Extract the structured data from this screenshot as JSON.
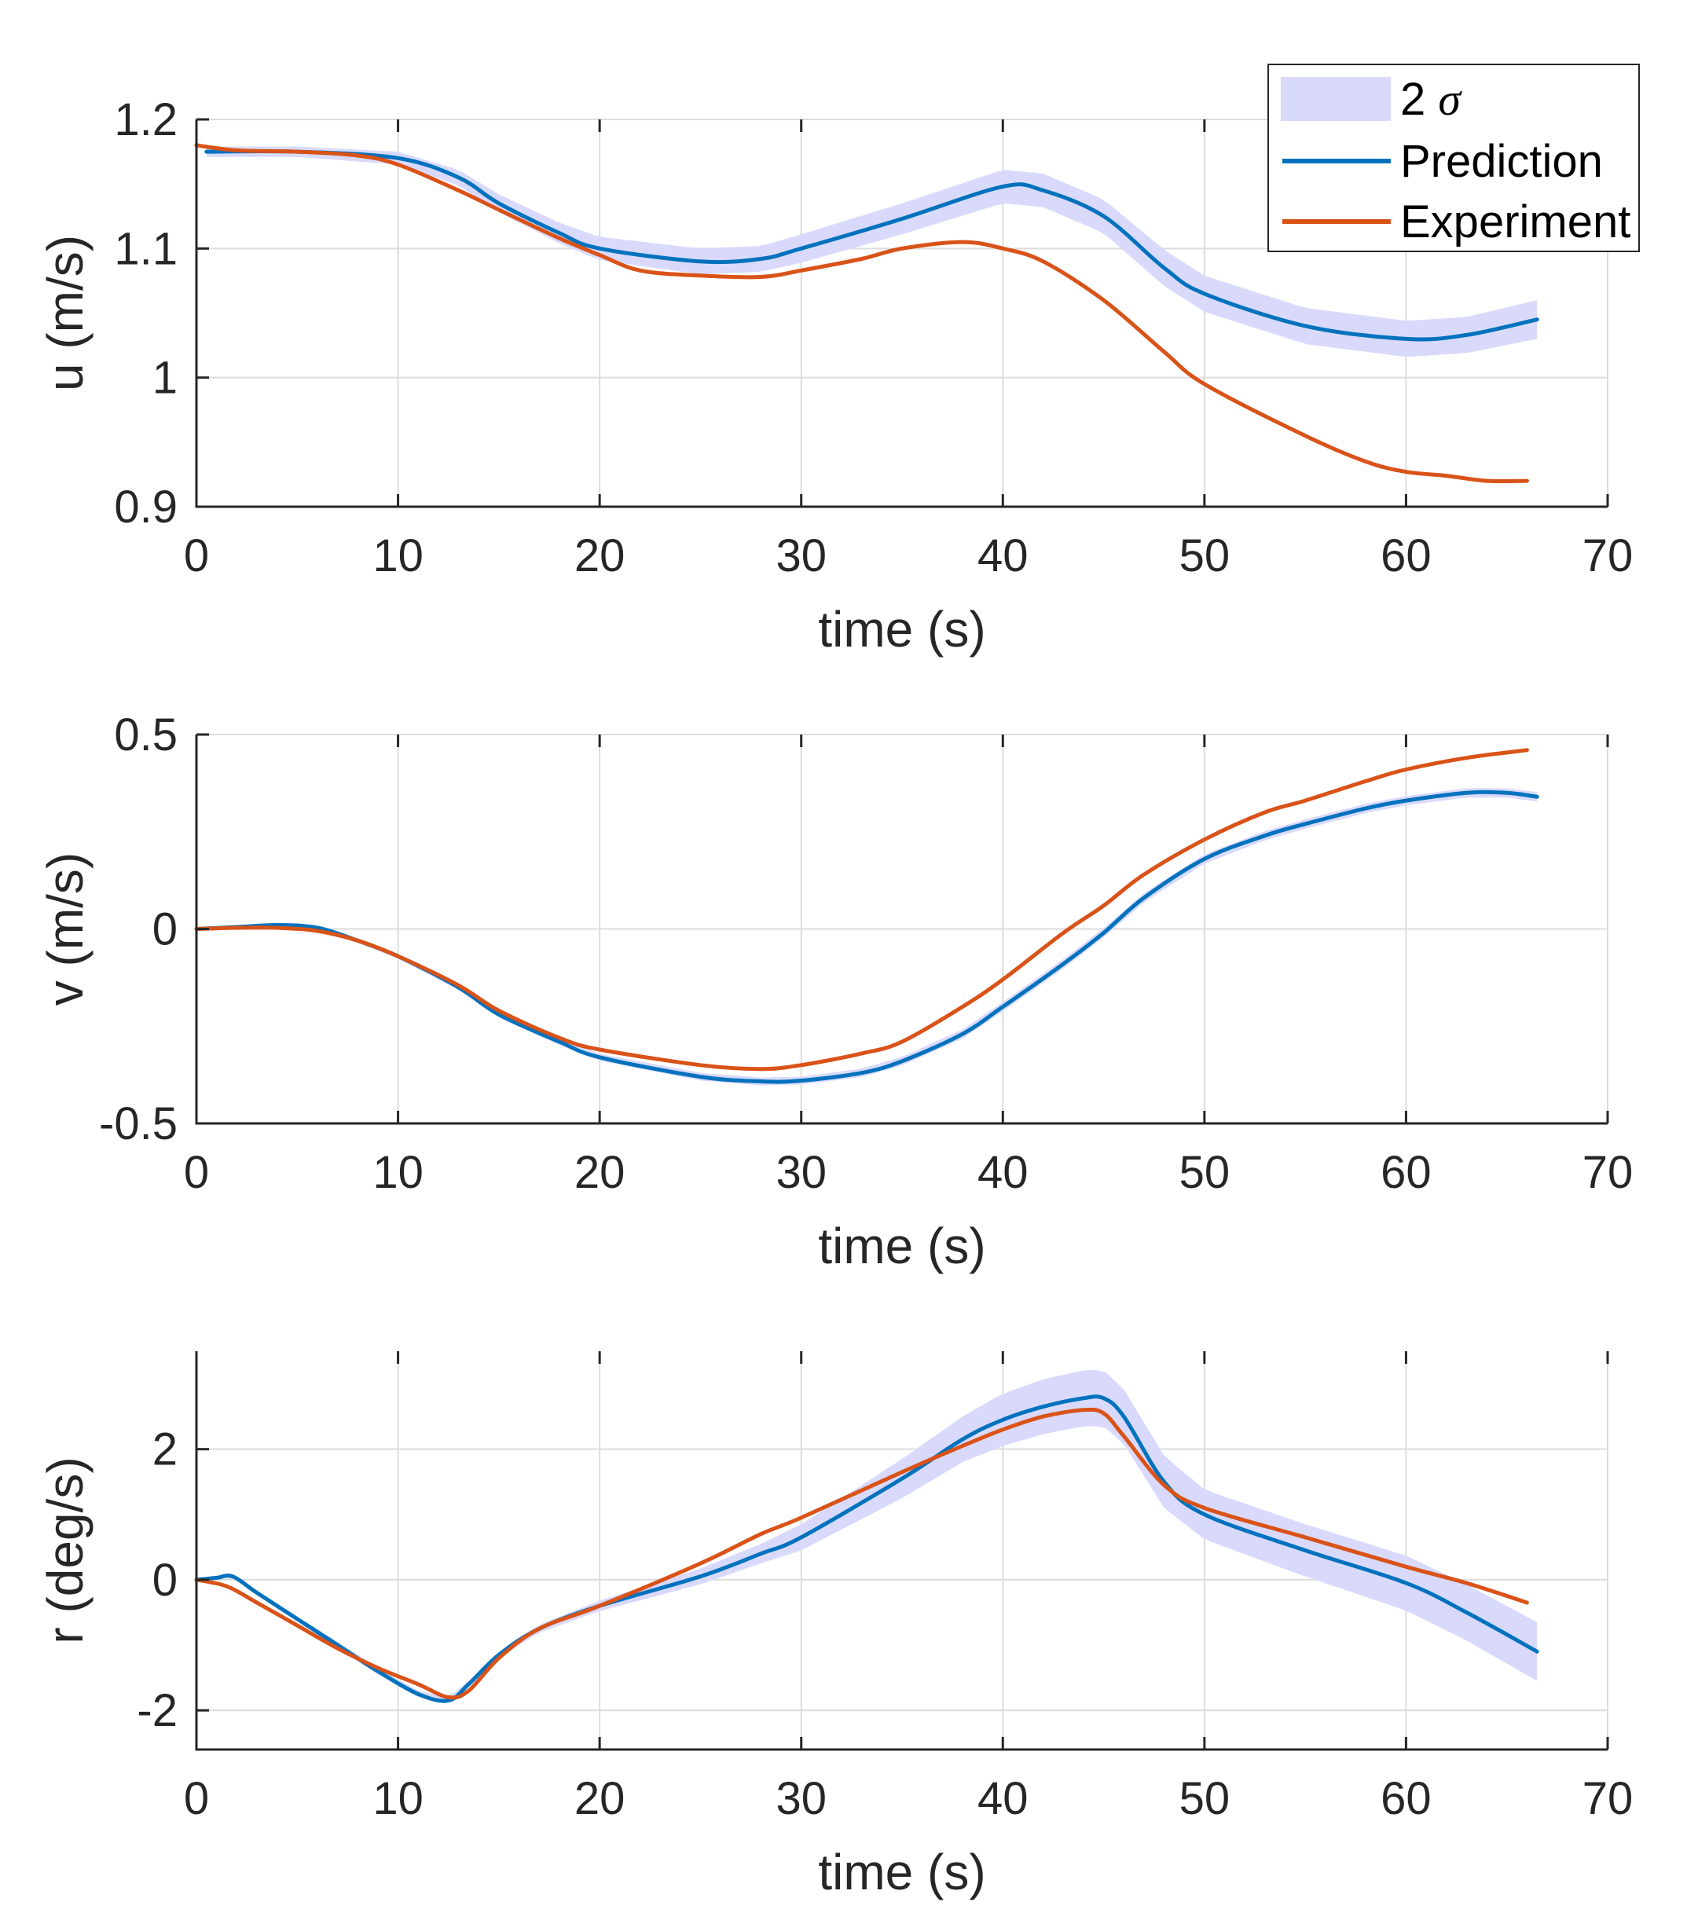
{
  "colors": {
    "prediction": "#0072BD",
    "experiment": "#D95319",
    "band": "#D9DAFB",
    "grid": "#DCDCDC",
    "axis": "#262626"
  },
  "legend": {
    "band_label": "2",
    "band_symbol": "σ",
    "prediction_label": "Prediction",
    "experiment_label": "Experiment"
  },
  "chart_data": [
    {
      "type": "line",
      "name": "u",
      "xlabel": "time (s)",
      "ylabel": "u (m/s)",
      "xlim": [
        0,
        70
      ],
      "ylim": [
        0.9,
        1.2
      ],
      "xticks": [
        0,
        10,
        20,
        30,
        40,
        50,
        60,
        70
      ],
      "xtick_labels": [
        "0",
        "10",
        "20",
        "30",
        "40",
        "50",
        "60",
        "70"
      ],
      "yticks": [
        0.9,
        1.0,
        1.1,
        1.2
      ],
      "ytick_labels": [
        "0.9",
        "1",
        "1.1",
        "1.2"
      ],
      "series": [
        {
          "name": "Prediction",
          "x": [
            0.5,
            5,
            10,
            13,
            15,
            18,
            20,
            25,
            28,
            30,
            35,
            40,
            42,
            45,
            48,
            50,
            55,
            60,
            63,
            66.5
          ],
          "y": [
            1.175,
            1.175,
            1.17,
            1.155,
            1.135,
            1.112,
            1.1,
            1.09,
            1.092,
            1.1,
            1.123,
            1.148,
            1.145,
            1.125,
            1.085,
            1.065,
            1.04,
            1.03,
            1.033,
            1.045
          ],
          "band": [
            0.004,
            0.004,
            0.005,
            0.006,
            0.007,
            0.008,
            0.009,
            0.01,
            0.01,
            0.011,
            0.012,
            0.013,
            0.013,
            0.013,
            0.014,
            0.014,
            0.014,
            0.014,
            0.014,
            0.015
          ]
        },
        {
          "name": "Experiment",
          "x": [
            0,
            2,
            5,
            8,
            10,
            13,
            15,
            18,
            20,
            22,
            25,
            28,
            30,
            33,
            35,
            38,
            40,
            42,
            45,
            48,
            50,
            55,
            58,
            60,
            62,
            64,
            66
          ],
          "y": [
            1.18,
            1.176,
            1.175,
            1.172,
            1.165,
            1.145,
            1.13,
            1.108,
            1.095,
            1.083,
            1.079,
            1.078,
            1.083,
            1.092,
            1.1,
            1.105,
            1.1,
            1.09,
            1.06,
            1.02,
            0.995,
            0.955,
            0.935,
            0.927,
            0.924,
            0.92,
            0.92
          ]
        }
      ]
    },
    {
      "type": "line",
      "name": "v",
      "xlabel": "time (s)",
      "ylabel": "v (m/s)",
      "xlim": [
        0,
        70
      ],
      "ylim": [
        -0.5,
        0.5
      ],
      "xticks": [
        0,
        10,
        20,
        30,
        40,
        50,
        60,
        70
      ],
      "xtick_labels": [
        "0",
        "10",
        "20",
        "30",
        "40",
        "50",
        "60",
        "70"
      ],
      "yticks": [
        -0.5,
        0,
        0.5
      ],
      "ytick_labels": [
        "-0.5",
        "0",
        "0.5"
      ],
      "series": [
        {
          "name": "Prediction",
          "x": [
            0,
            2,
            4,
            6,
            8,
            10,
            13,
            15,
            18,
            20,
            25,
            28,
            30,
            33,
            35,
            38,
            40,
            43,
            45,
            47,
            50,
            53,
            55,
            58,
            60,
            63,
            65,
            66.5
          ],
          "y": [
            0,
            0.005,
            0.01,
            0.003,
            -0.03,
            -0.07,
            -0.15,
            -0.22,
            -0.29,
            -0.33,
            -0.38,
            -0.392,
            -0.39,
            -0.37,
            -0.34,
            -0.27,
            -0.2,
            -0.09,
            -0.01,
            0.08,
            0.18,
            0.24,
            0.27,
            0.31,
            0.33,
            0.35,
            0.35,
            0.34
          ],
          "band": [
            0.005,
            0.005,
            0.005,
            0.005,
            0.006,
            0.006,
            0.007,
            0.008,
            0.008,
            0.009,
            0.01,
            0.01,
            0.01,
            0.011,
            0.011,
            0.012,
            0.012,
            0.012,
            0.012,
            0.012,
            0.012,
            0.012,
            0.012,
            0.012,
            0.012,
            0.012,
            0.012,
            0.012
          ]
        },
        {
          "name": "Experiment",
          "x": [
            0,
            2,
            4,
            6,
            8,
            10,
            13,
            15,
            18,
            20,
            25,
            28,
            30,
            33,
            35,
            38,
            40,
            43,
            45,
            47,
            50,
            53,
            55,
            58,
            60,
            63,
            66
          ],
          "y": [
            0,
            0.003,
            0.003,
            -0.005,
            -0.03,
            -0.07,
            -0.145,
            -0.21,
            -0.28,
            -0.31,
            -0.35,
            -0.36,
            -0.35,
            -0.32,
            -0.29,
            -0.2,
            -0.13,
            -0.01,
            0.06,
            0.14,
            0.23,
            0.3,
            0.33,
            0.38,
            0.41,
            0.44,
            0.46
          ]
        }
      ]
    },
    {
      "type": "line",
      "name": "r",
      "xlabel": "time (s)",
      "ylabel": "r (deg/s)",
      "xlim": [
        0,
        70
      ],
      "ylim": [
        -2.6,
        3.5
      ],
      "xticks": [
        0,
        10,
        20,
        30,
        40,
        50,
        60,
        70
      ],
      "xtick_labels": [
        "0",
        "10",
        "20",
        "30",
        "40",
        "50",
        "60",
        "70"
      ],
      "yticks": [
        -2,
        0,
        2
      ],
      "ytick_labels": [
        "-2",
        "0",
        "2"
      ],
      "series": [
        {
          "name": "Prediction",
          "x": [
            0,
            1,
            1.8,
            3,
            5,
            7,
            9,
            11,
            12.5,
            13.5,
            15,
            17,
            20,
            25,
            28,
            30,
            35,
            38,
            40,
            42,
            44,
            45,
            46,
            48,
            50,
            55,
            60,
            63,
            66.5
          ],
          "y": [
            0,
            0.03,
            0.05,
            -0.2,
            -0.6,
            -1.0,
            -1.4,
            -1.75,
            -1.85,
            -1.6,
            -1.15,
            -0.75,
            -0.4,
            0.05,
            0.4,
            0.65,
            1.55,
            2.15,
            2.45,
            2.65,
            2.78,
            2.78,
            2.5,
            1.5,
            1.0,
            0.45,
            -0.05,
            -0.5,
            -1.1
          ],
          "band": [
            0.02,
            0.02,
            0.02,
            0.03,
            0.04,
            0.05,
            0.05,
            0.05,
            0.05,
            0.05,
            0.05,
            0.06,
            0.08,
            0.12,
            0.15,
            0.2,
            0.3,
            0.35,
            0.4,
            0.42,
            0.43,
            0.43,
            0.42,
            0.4,
            0.38,
            0.4,
            0.42,
            0.43,
            0.45
          ]
        },
        {
          "name": "Experiment",
          "x": [
            0,
            1.5,
            3,
            5,
            7,
            9,
            11,
            12.5,
            13.5,
            15,
            17,
            20,
            25,
            28,
            30,
            35,
            38,
            40,
            42,
            44,
            45,
            46,
            48,
            50,
            55,
            60,
            63,
            66
          ],
          "y": [
            0,
            -0.1,
            -0.35,
            -0.7,
            -1.05,
            -1.35,
            -1.6,
            -1.8,
            -1.7,
            -1.2,
            -0.75,
            -0.4,
            0.25,
            0.7,
            0.95,
            1.65,
            2.05,
            2.3,
            2.5,
            2.6,
            2.55,
            2.2,
            1.45,
            1.1,
            0.65,
            0.2,
            -0.05,
            -0.35
          ]
        }
      ]
    }
  ]
}
